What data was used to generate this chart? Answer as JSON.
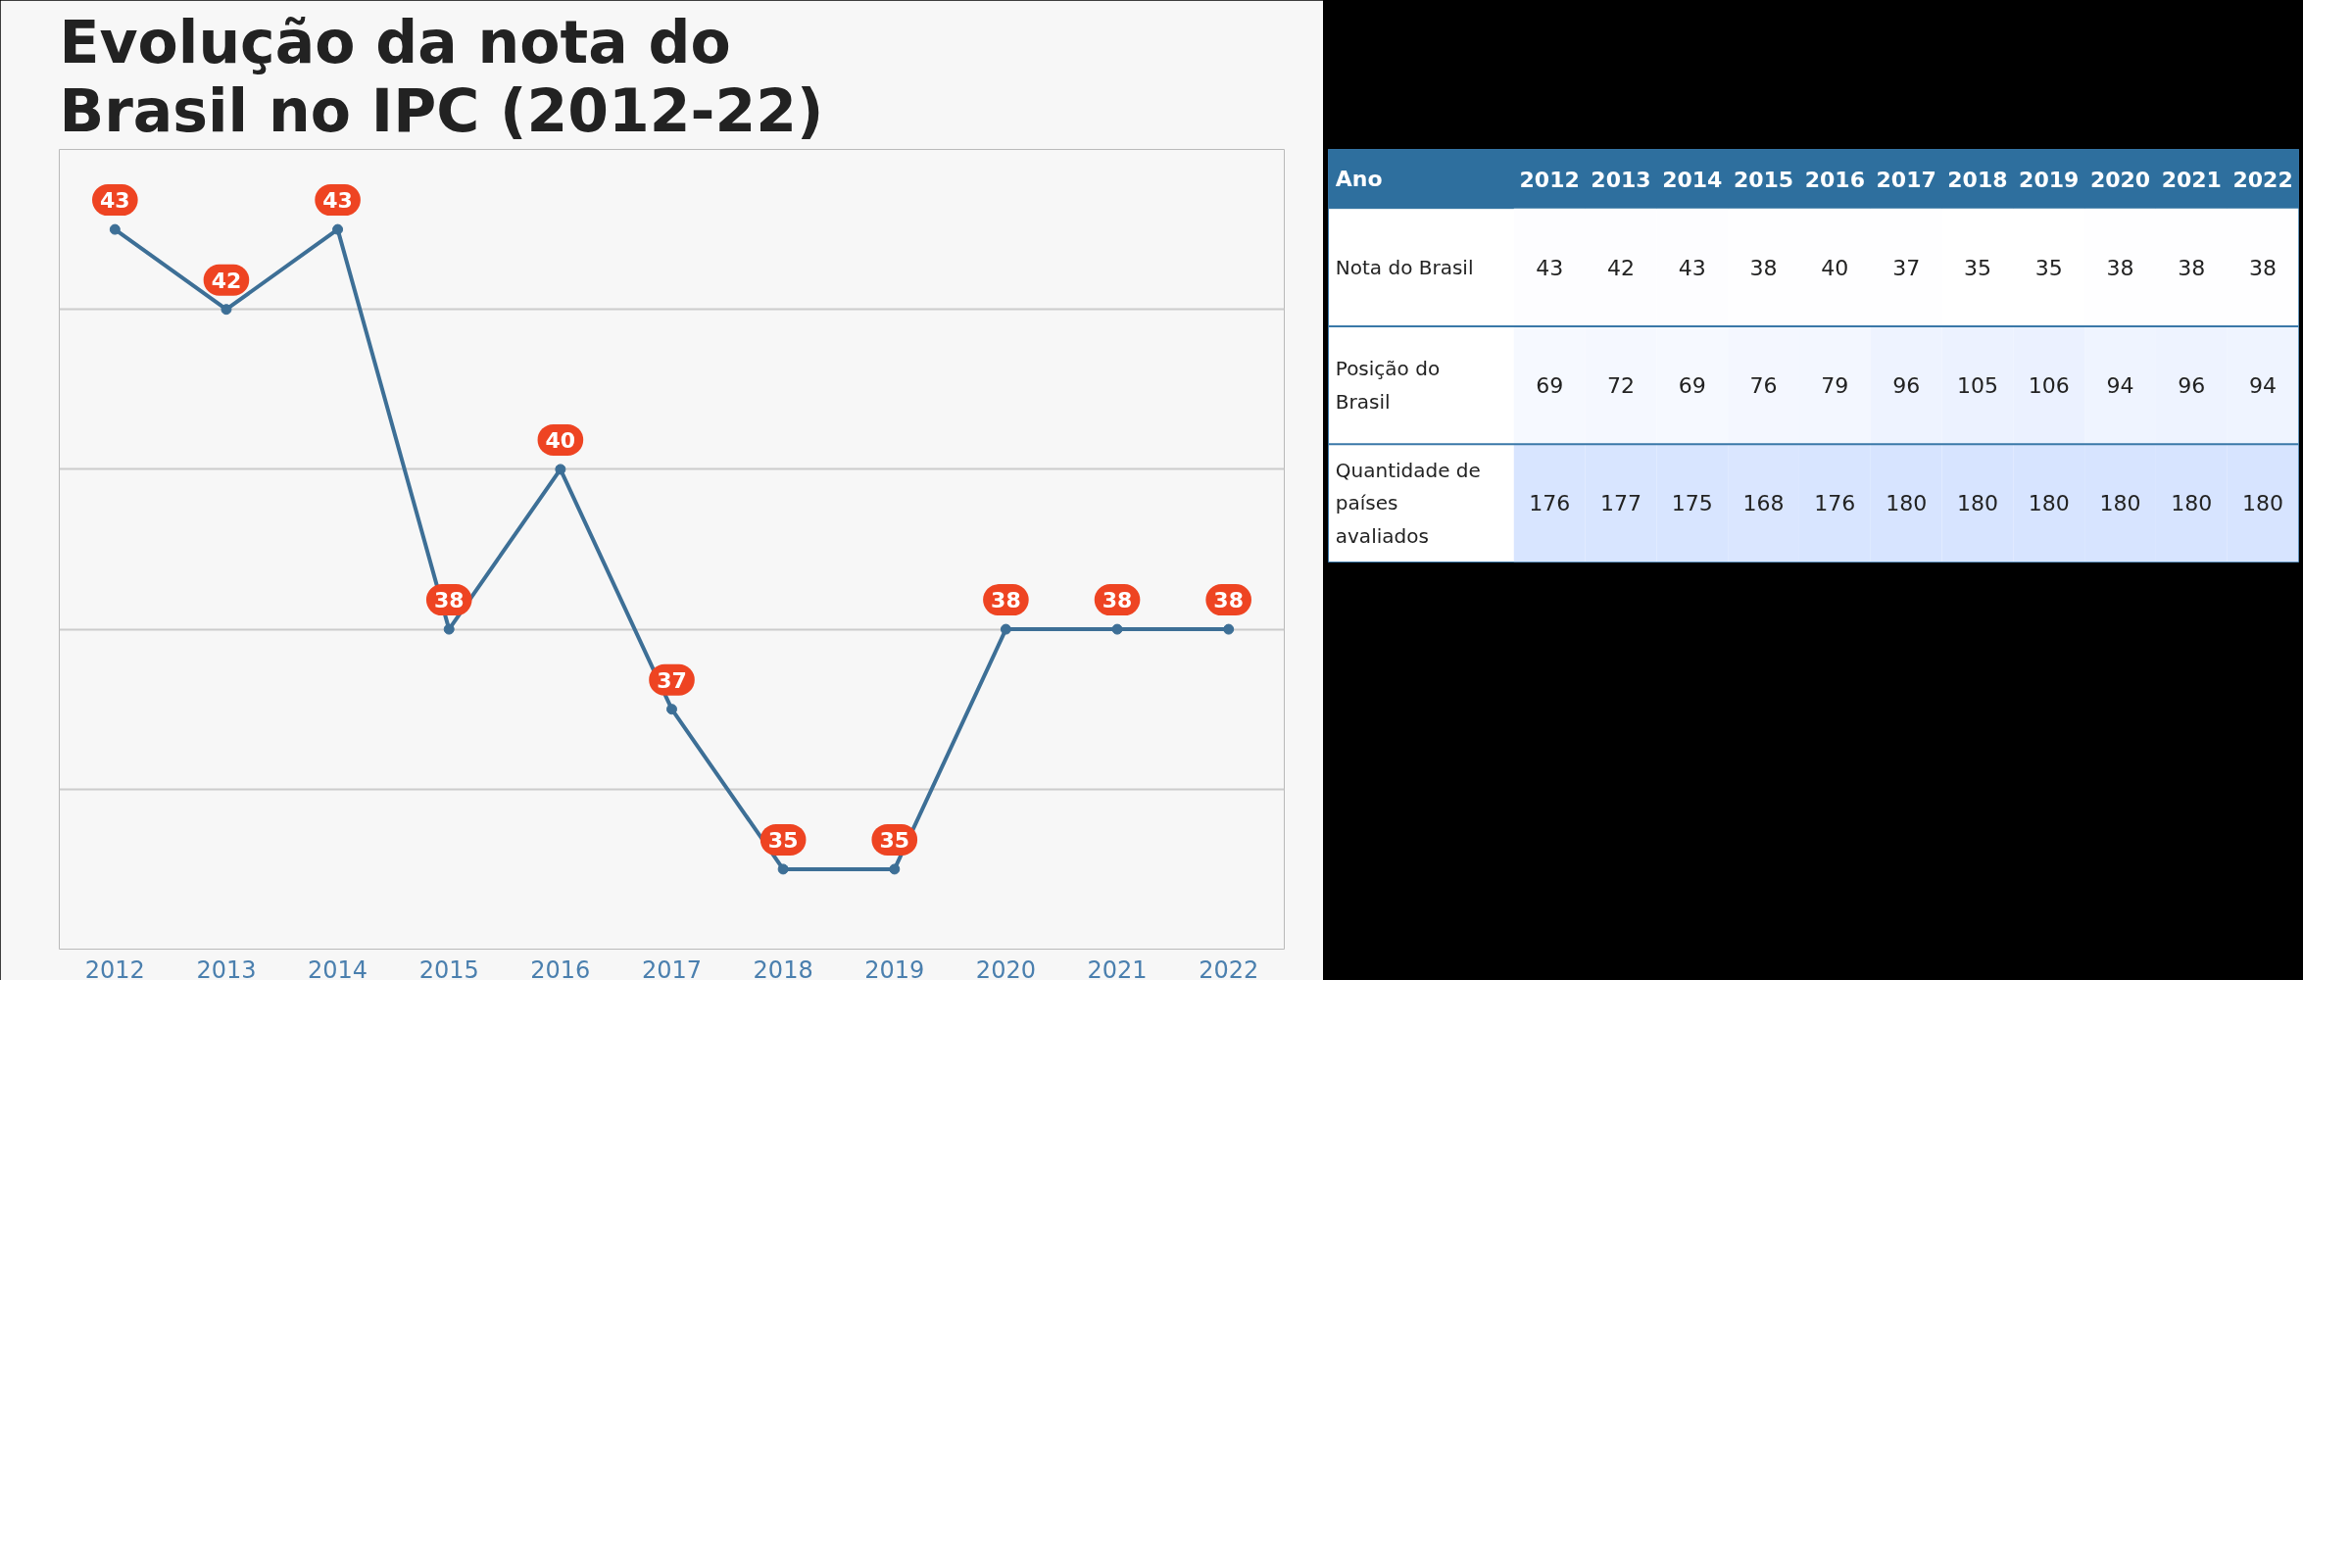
{
  "chart_data": [
    {
      "type": "line",
      "title": "Evolução da nota do Brasil no IPC (2012-22)",
      "categories": [
        "2012",
        "2013",
        "2014",
        "2015",
        "2016",
        "2017",
        "2018",
        "2019",
        "2020",
        "2021",
        "2022"
      ],
      "series": [
        {
          "color": "#3d6f96",
          "values": [
            43,
            42,
            43,
            38,
            40,
            37,
            35,
            35,
            38,
            38,
            38
          ]
        }
      ],
      "grid": "y",
      "marker": "circle",
      "data_labels": true,
      "tick_labels": "x"
    },
    {
      "type": "heatmap",
      "xlabel": "Ano",
      "categories": [
        "2012",
        "2013",
        "2014",
        "2015",
        "2016",
        "2017",
        "2018",
        "2019",
        "2020",
        "2021",
        "2022"
      ],
      "y_categories": [
        "Nota do Brasil",
        "Posição do Brasil",
        "Quantidade de países avaliados"
      ],
      "cells": [
        [
          43,
          42,
          43,
          38,
          40,
          37,
          35,
          35,
          38,
          38,
          38
        ],
        [
          69,
          72,
          69,
          76,
          79,
          96,
          105,
          106,
          94,
          96,
          94
        ],
        [
          176,
          177,
          175,
          168,
          176,
          180,
          180,
          180,
          180,
          180,
          180
        ]
      ],
      "cell_labels": [
        [
          "43",
          "42",
          "43",
          "38",
          "40",
          "37",
          "35",
          "35",
          "38",
          "38",
          "38"
        ],
        [
          "69",
          "72",
          "69",
          "76",
          "79",
          "96",
          "105",
          "106",
          "94",
          "96",
          "94"
        ],
        [
          "176",
          "177",
          "175",
          "168",
          "176",
          "180",
          "180",
          "180",
          "180",
          "180",
          "180"
        ]
      ]
    }
  ]
}
